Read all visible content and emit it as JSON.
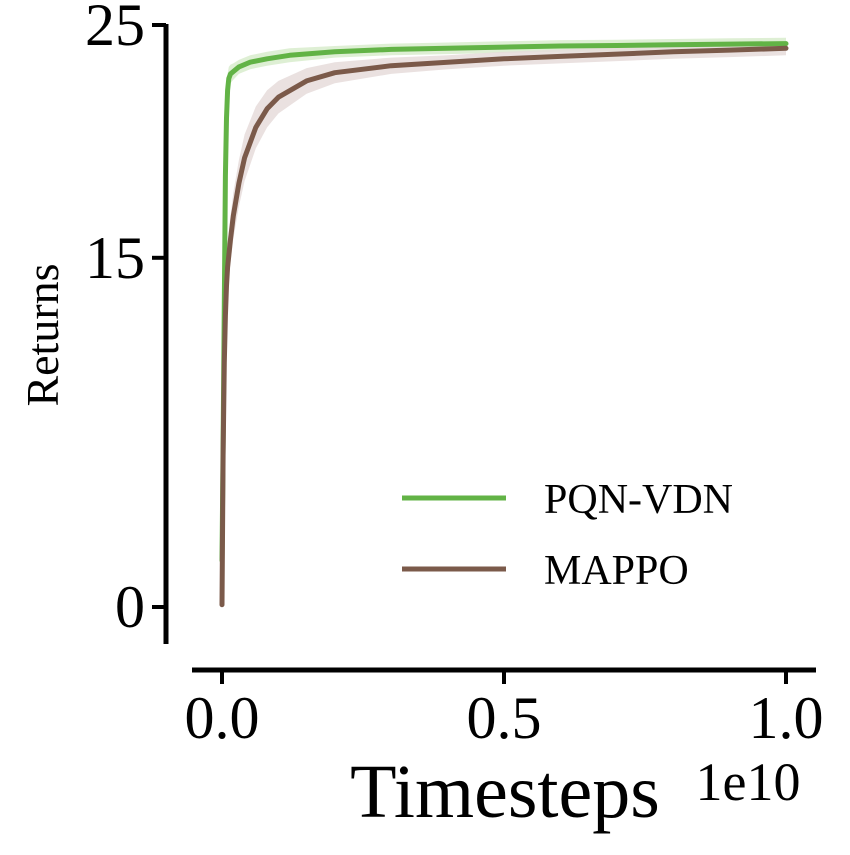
{
  "chart_data": {
    "type": "line",
    "xlabel": "Timesteps",
    "ylabel": "Returns",
    "x_offset_label": "1e10",
    "xlim": [
      -0.05,
      1.05
    ],
    "ylim": [
      -1.5,
      25
    ],
    "x_ticks": [
      0.0,
      0.5,
      1.0
    ],
    "x_tick_labels": [
      "0.0",
      "0.5",
      "1.0"
    ],
    "y_ticks": [
      0,
      15,
      25
    ],
    "y_tick_labels": [
      "0",
      "15",
      "25"
    ],
    "grid": false,
    "legend_position": "lower-right",
    "series": [
      {
        "name": "PQN-VDN",
        "color": "#62b346",
        "band_color": "#d8eccc",
        "x": [
          0.0,
          0.002,
          0.004,
          0.006,
          0.008,
          0.01,
          0.012,
          0.015,
          0.02,
          0.03,
          0.05,
          0.08,
          0.12,
          0.2,
          0.3,
          0.4,
          0.5,
          0.6,
          0.7,
          0.8,
          0.9,
          1.0
        ],
        "y": [
          2.0,
          7.0,
          13.0,
          18.5,
          21.0,
          22.2,
          22.7,
          22.9,
          23.0,
          23.2,
          23.4,
          23.55,
          23.7,
          23.85,
          23.95,
          24.0,
          24.05,
          24.1,
          24.12,
          24.15,
          24.18,
          24.2
        ],
        "band": [
          0.0,
          0.8,
          1.0,
          1.0,
          1.5,
          0.7,
          0.5,
          0.4,
          0.35,
          0.3,
          0.3,
          0.3,
          0.3,
          0.25,
          0.25,
          0.25,
          0.25,
          0.25,
          0.25,
          0.25,
          0.25,
          0.25
        ]
      },
      {
        "name": "MAPPO",
        "color": "#7b5a4a",
        "band_color": "#e6dcda",
        "x": [
          0.0,
          0.002,
          0.004,
          0.006,
          0.008,
          0.01,
          0.015,
          0.02,
          0.03,
          0.04,
          0.06,
          0.08,
          0.1,
          0.15,
          0.2,
          0.3,
          0.4,
          0.5,
          0.6,
          0.7,
          0.8,
          0.9,
          1.0
        ],
        "y": [
          0.1,
          6.5,
          10.5,
          12.5,
          13.8,
          14.6,
          15.8,
          16.8,
          18.2,
          19.3,
          20.6,
          21.4,
          21.9,
          22.6,
          22.95,
          23.25,
          23.4,
          23.55,
          23.65,
          23.75,
          23.85,
          23.92,
          24.0
        ],
        "band": [
          0.0,
          0.6,
          0.9,
          1.0,
          1.0,
          1.0,
          1.0,
          1.0,
          1.0,
          1.0,
          0.9,
          0.8,
          0.7,
          0.55,
          0.45,
          0.35,
          0.3,
          0.3,
          0.3,
          0.3,
          0.3,
          0.3,
          0.3
        ]
      }
    ]
  }
}
